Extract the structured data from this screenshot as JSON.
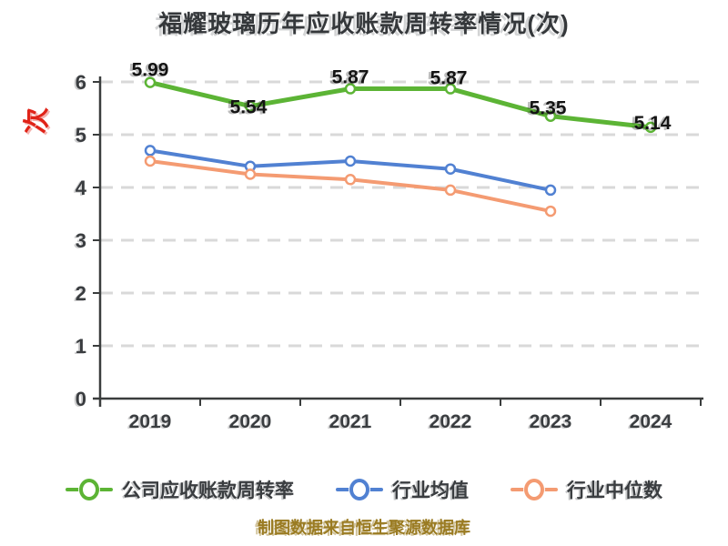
{
  "title": "福耀玻璃历年应收账款周转率情况(次)",
  "y_axis_unit": "次",
  "caption": "制图数据来自恒生聚源数据库",
  "colors": {
    "company_line": "#5CB435",
    "industry_avg_line": "#5181D2",
    "industry_median_line": "#F49B72",
    "grid": "#D9D9D9",
    "axis": "#3A3D3D",
    "tick_text": "#3A3D40",
    "title_text": "#35383B",
    "data_label": "#141414",
    "unit_label_red": "#E02318",
    "caption_gold": "#9A7B22"
  },
  "chart_data": {
    "type": "line",
    "title": "福耀玻璃历年应收账款周转率情况(次)",
    "categories": [
      "2019",
      "2020",
      "2021",
      "2022",
      "2023",
      "2024"
    ],
    "series": [
      {
        "name": "公司应收账款周转率",
        "color": "#5CB435",
        "values": [
          5.99,
          5.54,
          5.87,
          5.87,
          5.35,
          5.14
        ],
        "data_labels_shown": true
      },
      {
        "name": "行业均值",
        "color": "#5181D2",
        "values": [
          4.7,
          4.4,
          4.5,
          4.35,
          3.95,
          null
        ],
        "data_labels_shown": false
      },
      {
        "name": "行业中位数",
        "color": "#F49B72",
        "values": [
          4.5,
          4.25,
          4.15,
          3.95,
          3.55,
          null
        ],
        "data_labels_shown": false
      }
    ],
    "xlabel": "",
    "ylabel": "次",
    "ylim": [
      0,
      6
    ],
    "yticks": [
      0,
      1,
      2,
      3,
      4,
      5,
      6
    ],
    "grid": "horizontal-dashed",
    "legend_position": "bottom",
    "marker": "white-filled-circle"
  }
}
